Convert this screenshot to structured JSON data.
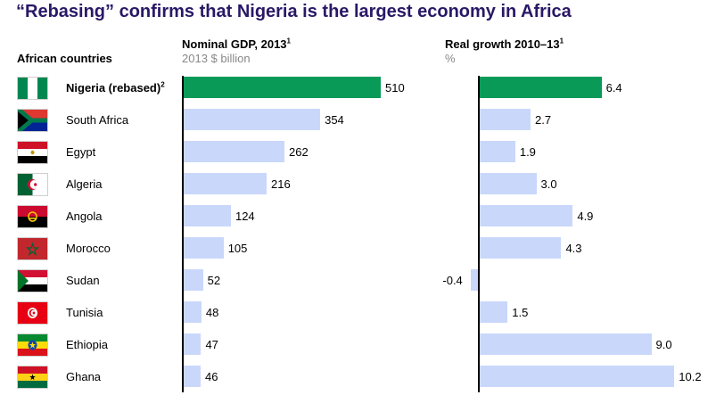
{
  "title": "“Rebasing” confirms that Nigeria is the largest economy in Africa",
  "headers": {
    "countries": "African countries",
    "gdp_title": "Nominal GDP, 2013",
    "gdp_note": "1",
    "gdp_unit": "2013 $ billion",
    "growth_title": "Real growth 2010–13",
    "growth_note": "1",
    "growth_unit": "%"
  },
  "colors": {
    "highlight": "#0a9a57",
    "normal": "#c9d7fb",
    "title": "#2a1866"
  },
  "chart_data": {
    "type": "bar",
    "orientation": "horizontal",
    "title": "“Rebasing” confirms that Nigeria is the largest economy in Africa",
    "categories": [
      "Nigeria (rebased)",
      "South Africa",
      "Egypt",
      "Algeria",
      "Angola",
      "Morocco",
      "Sudan",
      "Tunisia",
      "Ethiopia",
      "Ghana"
    ],
    "category_notes": [
      "2",
      "",
      "",
      "",
      "",
      "",
      "",
      "",
      "",
      ""
    ],
    "flag_icons": [
      "nigeria-flag-icon",
      "south-africa-flag-icon",
      "egypt-flag-icon",
      "algeria-flag-icon",
      "angola-flag-icon",
      "morocco-flag-icon",
      "sudan-flag-icon",
      "tunisia-flag-icon",
      "ethiopia-flag-icon",
      "ghana-flag-icon"
    ],
    "highlight_index": 0,
    "series": [
      {
        "name": "Nominal GDP, 2013",
        "unit": "2013 $ billion",
        "values": [
          510,
          354,
          262,
          216,
          124,
          105,
          52,
          48,
          47,
          46
        ],
        "labels": [
          "510",
          "354",
          "262",
          "216",
          "124",
          "105",
          "52",
          "48",
          "47",
          "46"
        ]
      },
      {
        "name": "Real growth 2010–13",
        "unit": "%",
        "values": [
          6.4,
          2.7,
          1.9,
          3.0,
          4.9,
          4.3,
          -0.4,
          1.5,
          9.0,
          10.2
        ],
        "labels": [
          "6.4",
          "2.7",
          "1.9",
          "3.0",
          "4.9",
          "4.3",
          "-0.4",
          "1.5",
          "9.0",
          "10.2"
        ]
      }
    ],
    "grid": false,
    "legend": "none"
  }
}
